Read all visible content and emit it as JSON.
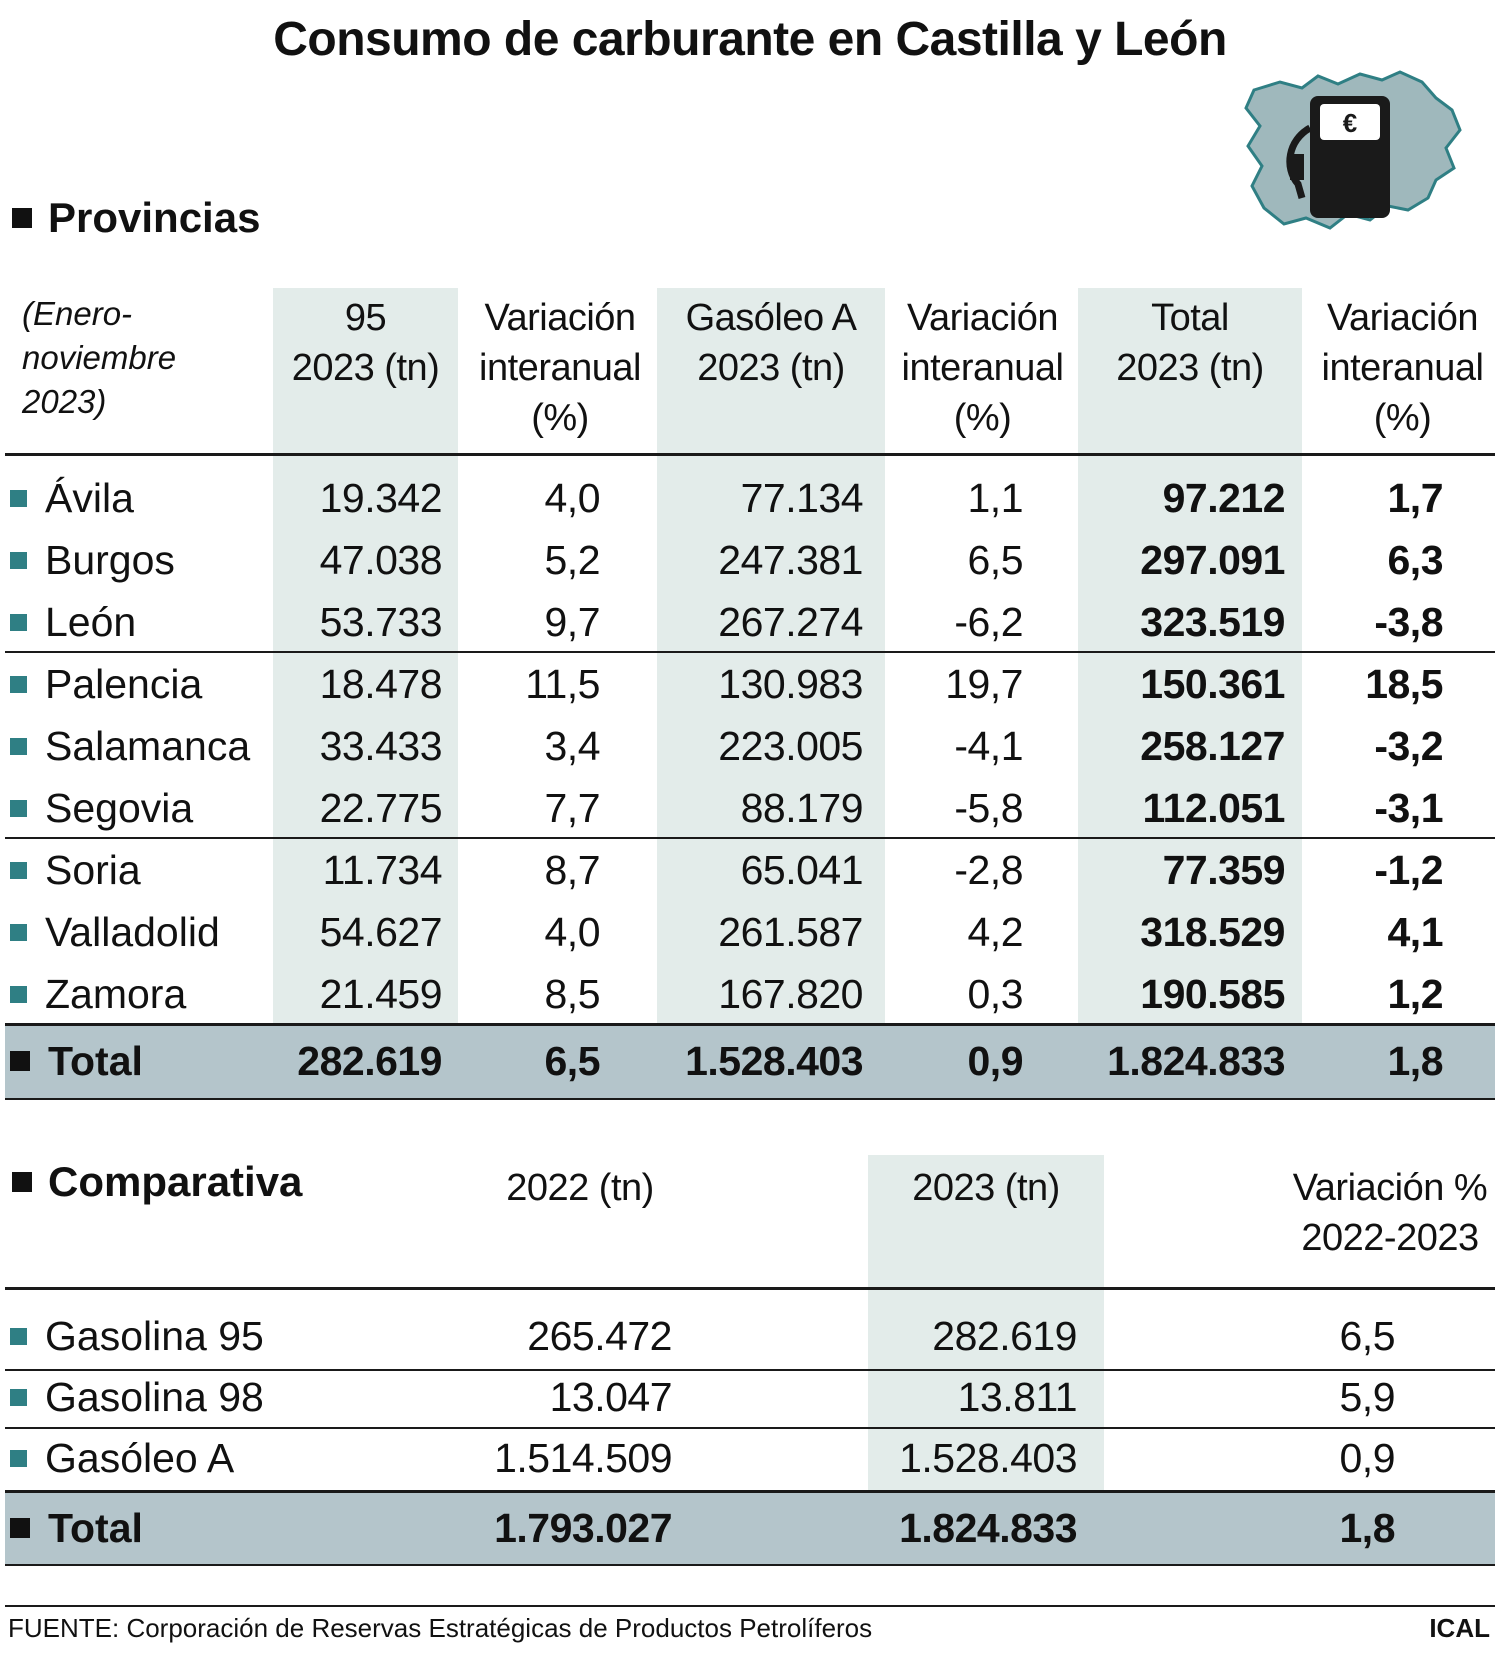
{
  "title": "Consumo de carburante en Castilla y León",
  "colors": {
    "teal_marker": "#2f7f84",
    "column_shade": "#e3ecea",
    "total_band": "#b4c5cb",
    "map_fill": "#9fb8bc",
    "map_stroke": "#2f7f84"
  },
  "logo": {
    "icon": "fuel-pump-map-icon",
    "currency_symbol": "€"
  },
  "provincias": {
    "section_title": "Provincias",
    "note": [
      "(Enero-",
      "noviembre",
      "2023)"
    ],
    "headers": {
      "g95": [
        "95",
        "2023 (tn)"
      ],
      "var1": [
        "Variación",
        "interanual",
        "(%)"
      ],
      "gasoleo": [
        "Gasóleo A",
        "2023 (tn)"
      ],
      "var2": [
        "Variación",
        "interanual",
        "(%)"
      ],
      "total": [
        "Total",
        "2023 (tn)"
      ],
      "var3": [
        "Variación",
        "interanual",
        "(%)"
      ]
    },
    "rows": [
      {
        "name": "Ávila",
        "g95": "19.342",
        "var95": "4,0",
        "gasoleo": "77.134",
        "vargas": "1,1",
        "total": "97.212",
        "vartotal": "1,7"
      },
      {
        "name": "Burgos",
        "g95": "47.038",
        "var95": "5,2",
        "gasoleo": "247.381",
        "vargas": "6,5",
        "total": "297.091",
        "vartotal": "6,3"
      },
      {
        "name": "León",
        "g95": "53.733",
        "var95": "9,7",
        "gasoleo": "267.274",
        "vargas": "-6,2",
        "total": "323.519",
        "vartotal": "-3,8"
      },
      {
        "name": "Palencia",
        "g95": "18.478",
        "var95": "11,5",
        "gasoleo": "130.983",
        "vargas": "19,7",
        "total": "150.361",
        "vartotal": "18,5"
      },
      {
        "name": "Salamanca",
        "g95": "33.433",
        "var95": "3,4",
        "gasoleo": "223.005",
        "vargas": "-4,1",
        "total": "258.127",
        "vartotal": "-3,2"
      },
      {
        "name": "Segovia",
        "g95": "22.775",
        "var95": "7,7",
        "gasoleo": "88.179",
        "vargas": "-5,8",
        "total": "112.051",
        "vartotal": "-3,1"
      },
      {
        "name": "Soria",
        "g95": "11.734",
        "var95": "8,7",
        "gasoleo": "65.041",
        "vargas": "-2,8",
        "total": "77.359",
        "vartotal": "-1,2"
      },
      {
        "name": "Valladolid",
        "g95": "54.627",
        "var95": "4,0",
        "gasoleo": "261.587",
        "vargas": "4,2",
        "total": "318.529",
        "vartotal": "4,1"
      },
      {
        "name": "Zamora",
        "g95": "21.459",
        "var95": "8,5",
        "gasoleo": "167.820",
        "vargas": "0,3",
        "total": "190.585",
        "vartotal": "1,2"
      }
    ],
    "total": {
      "name": "Total",
      "g95": "282.619",
      "var95": "6,5",
      "gasoleo": "1.528.403",
      "vargas": "0,9",
      "total": "1.824.833",
      "vartotal": "1,8"
    }
  },
  "comparativa": {
    "section_title": "Comparativa",
    "headers": {
      "y2022": [
        "2022 (tn)"
      ],
      "y2023": [
        "2023 (tn)"
      ],
      "variacion": [
        "Variación %",
        "2022-2023"
      ]
    },
    "rows": [
      {
        "name": "Gasolina 95",
        "y2022": "265.472",
        "y2023": "282.619",
        "variacion": "6,5"
      },
      {
        "name": "Gasolina 98",
        "y2022": "13.047",
        "y2023": "13.811",
        "variacion": "5,9"
      },
      {
        "name": "Gasóleo A",
        "y2022": "1.514.509",
        "y2023": "1.528.403",
        "variacion": "0,9"
      }
    ],
    "total": {
      "name": "Total",
      "y2022": "1.793.027",
      "y2023": "1.824.833",
      "variacion": "1,8"
    }
  },
  "source": "FUENTE: Corporación de Reservas Estratégicas de Productos Petrolíferos",
  "credit": "ICAL",
  "chart_data": [
    {
      "type": "table",
      "columns": [
        "",
        "95 2023 (tn)",
        "Variación interanual (%)",
        "Gasóleo A 2023 (tn)",
        "Variación interanual (%)",
        "Total 2023 (tn)",
        "Variación interanual (%)"
      ],
      "rows": [
        [
          "Ávila",
          19342,
          4.0,
          77134,
          1.1,
          97212,
          1.7
        ],
        [
          "Burgos",
          47038,
          5.2,
          247381,
          6.5,
          297091,
          6.3
        ],
        [
          "León",
          53733,
          9.7,
          267274,
          -6.2,
          323519,
          -3.8
        ],
        [
          "Palencia",
          18478,
          11.5,
          130983,
          19.7,
          150361,
          18.5
        ],
        [
          "Salamanca",
          33433,
          3.4,
          223005,
          -4.1,
          258127,
          -3.2
        ],
        [
          "Segovia",
          22775,
          7.7,
          88179,
          -5.8,
          112051,
          -3.1
        ],
        [
          "Soria",
          11734,
          8.7,
          65041,
          -2.8,
          77359,
          -1.2
        ],
        [
          "Valladolid",
          54627,
          4.0,
          261587,
          4.2,
          318529,
          4.1
        ],
        [
          "Zamora",
          21459,
          8.5,
          167820,
          0.3,
          190585,
          1.2
        ],
        [
          "Total",
          282619,
          6.5,
          1528403,
          0.9,
          1824833,
          1.8
        ]
      ]
    },
    {
      "type": "table",
      "columns": [
        "",
        "2022 (tn)",
        "2023 (tn)",
        "Variación % 2022-2023"
      ],
      "rows": [
        [
          "Gasolina 95",
          265472,
          282619,
          6.5
        ],
        [
          "Gasolina 98",
          13047,
          13811,
          5.9
        ],
        [
          "Gasóleo A",
          1514509,
          1528403,
          0.9
        ],
        [
          "Total",
          1793027,
          1824833,
          1.8
        ]
      ]
    }
  ]
}
